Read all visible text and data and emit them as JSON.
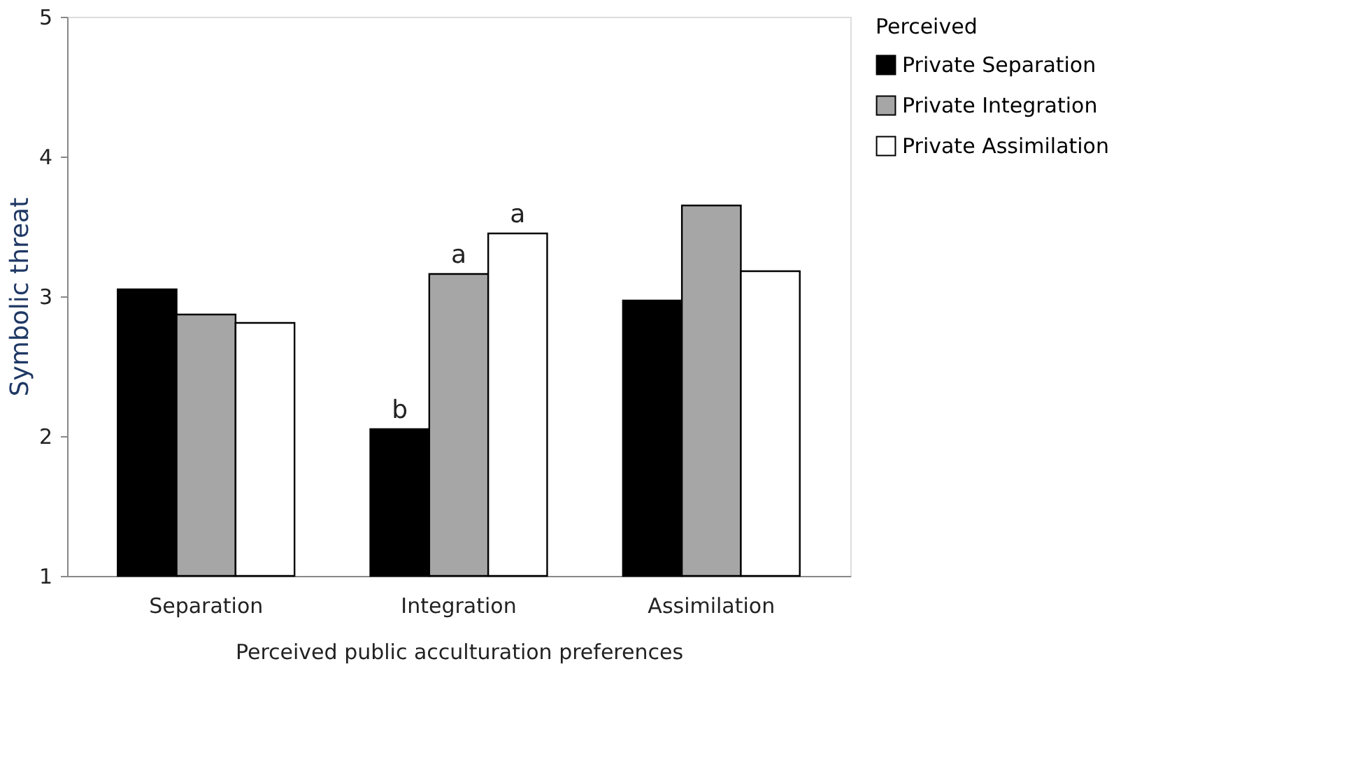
{
  "chart_data": {
    "type": "bar",
    "ylabel": "Symbolic threat",
    "xlabel": "Perceived public acculturation preferences",
    "legend_title": "Perceived",
    "categories": [
      "Separation",
      "Integration",
      "Assimilation"
    ],
    "series": [
      {
        "name": "Private Separation",
        "color": "#000000",
        "values": [
          3.05,
          2.05,
          2.97
        ],
        "value_labels": [
          null,
          "b",
          null
        ]
      },
      {
        "name": "Private Integration",
        "color": "#a6a6a6",
        "values": [
          2.87,
          3.16,
          3.65
        ],
        "value_labels": [
          null,
          "a",
          null
        ]
      },
      {
        "name": "Private Assimilation",
        "color": "#ffffff",
        "values": [
          2.81,
          3.45,
          3.18
        ],
        "value_labels": [
          null,
          "a",
          null
        ]
      }
    ],
    "ylim": [
      1,
      5
    ],
    "yticks": [
      1,
      2,
      3,
      4,
      5
    ],
    "grid": false,
    "legend": "right"
  }
}
